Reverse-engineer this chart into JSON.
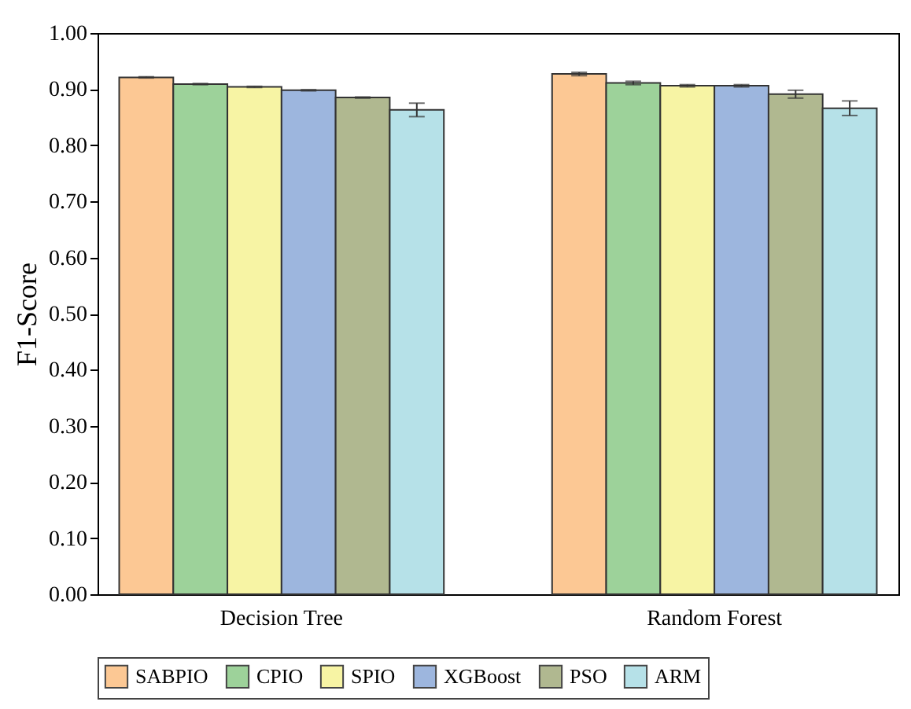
{
  "chart_data": {
    "type": "bar",
    "ylabel": "F1-Score",
    "categories": [
      "Decision Tree",
      "Random Forest"
    ],
    "series": [
      {
        "name": "SABPIO",
        "color": "#fcc894",
        "values": [
          0.921,
          0.927
        ],
        "errors": [
          0.001,
          0.003
        ]
      },
      {
        "name": "CPIO",
        "color": "#9dd29a",
        "values": [
          0.909,
          0.911
        ],
        "errors": [
          0.001,
          0.003
        ]
      },
      {
        "name": "SPIO",
        "color": "#f7f4a4",
        "values": [
          0.904,
          0.906
        ],
        "errors": [
          0.001,
          0.002
        ]
      },
      {
        "name": "XGBoost",
        "color": "#9db6de",
        "values": [
          0.898,
          0.906
        ],
        "errors": [
          0.001,
          0.002
        ]
      },
      {
        "name": "PSO",
        "color": "#b0b890",
        "values": [
          0.885,
          0.891
        ],
        "errors": [
          0.001,
          0.007
        ]
      },
      {
        "name": "ARM",
        "color": "#b6e1e8",
        "values": [
          0.863,
          0.866
        ],
        "errors": [
          0.012,
          0.013
        ]
      }
    ],
    "ylim": [
      0,
      1
    ],
    "yticks": [
      {
        "value": 0,
        "label": "0.00"
      },
      {
        "value": 0.1,
        "label": "0.10"
      },
      {
        "value": 0.2,
        "label": "0.20"
      },
      {
        "value": 0.3,
        "label": "0.30"
      },
      {
        "value": 0.4,
        "label": "0.40"
      },
      {
        "value": 0.5,
        "label": "0.50"
      },
      {
        "value": 0.6,
        "label": "0.60"
      },
      {
        "value": 0.7,
        "label": "0.70"
      },
      {
        "value": 0.8,
        "label": "0.80"
      },
      {
        "value": 0.9,
        "label": "0.90"
      },
      {
        "value": 1,
        "label": "1.00"
      }
    ],
    "grid": false,
    "legend": "bottom"
  }
}
